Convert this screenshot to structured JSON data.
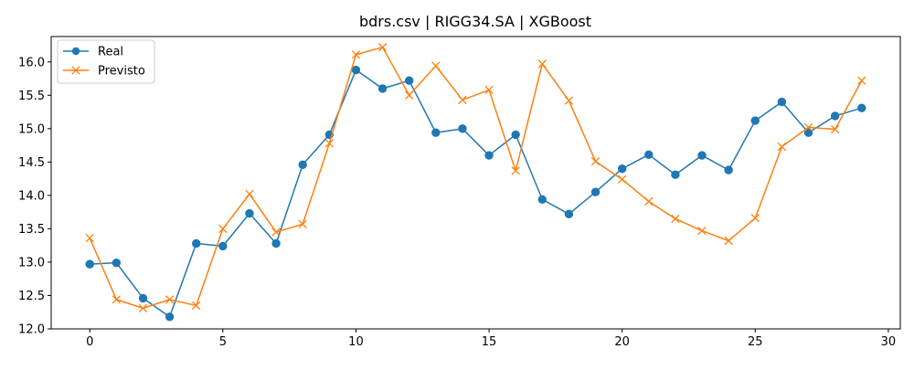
{
  "chart_data": {
    "type": "line",
    "title": "bdrs.csv | RIGG34.SA | XGBoost",
    "xlabel": "",
    "ylabel": "",
    "xlim": [
      -1.45,
      30.45
    ],
    "ylim": [
      12.0,
      16.38
    ],
    "x_ticks": [
      0,
      5,
      10,
      15,
      20,
      25,
      30
    ],
    "x_tick_labels": [
      "0",
      "5",
      "10",
      "15",
      "20",
      "25",
      "30"
    ],
    "y_ticks": [
      12.0,
      12.5,
      13.0,
      13.5,
      14.0,
      14.5,
      15.0,
      15.5,
      16.0
    ],
    "y_tick_labels": [
      "12.0",
      "12.5",
      "13.0",
      "13.5",
      "14.0",
      "14.5",
      "15.0",
      "15.5",
      "16.0"
    ],
    "grid": false,
    "legend_position": "top-left",
    "x": [
      0,
      1,
      2,
      3,
      4,
      5,
      6,
      7,
      8,
      9,
      10,
      11,
      12,
      13,
      14,
      15,
      16,
      17,
      18,
      19,
      20,
      21,
      22,
      23,
      24,
      25,
      26,
      27,
      28,
      29
    ],
    "series": [
      {
        "name": "Real",
        "color": "#1f77b4",
        "marker": "circle",
        "values": [
          12.97,
          12.99,
          12.46,
          12.18,
          13.28,
          13.24,
          13.73,
          13.28,
          14.46,
          14.91,
          15.88,
          15.6,
          15.72,
          14.94,
          15.0,
          14.6,
          14.91,
          13.94,
          13.72,
          14.05,
          14.4,
          14.61,
          14.31,
          14.6,
          14.38,
          15.12,
          15.4,
          14.94,
          15.19,
          15.31
        ]
      },
      {
        "name": "Previsto",
        "color": "#ff7f0e",
        "marker": "x",
        "values": [
          13.36,
          12.44,
          12.31,
          12.44,
          12.35,
          13.5,
          14.02,
          13.45,
          13.57,
          14.78,
          16.11,
          16.22,
          15.5,
          15.94,
          15.43,
          15.58,
          14.37,
          15.97,
          15.42,
          14.51,
          14.24,
          13.91,
          13.65,
          13.47,
          13.32,
          13.66,
          14.73,
          15.02,
          14.99,
          15.72
        ]
      }
    ]
  }
}
